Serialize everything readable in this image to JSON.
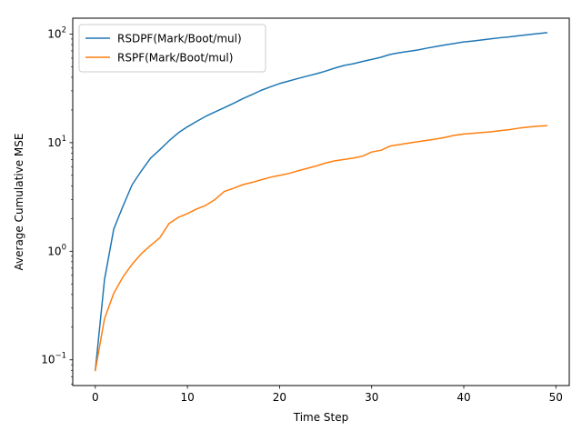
{
  "chart_data": {
    "type": "line",
    "title": "",
    "xlabel": "Time Step",
    "ylabel": "Average Cumulative MSE",
    "xlim": [
      -2.45,
      51.45
    ],
    "ylim": [
      0.058,
      140
    ],
    "yscale": "log",
    "x_ticks": [
      0,
      10,
      20,
      30,
      40,
      50
    ],
    "x_tick_labels": [
      "0",
      "10",
      "20",
      "30",
      "40",
      "50"
    ],
    "y_ticks": [
      0.1,
      1,
      10,
      100
    ],
    "y_tick_labels": [
      {
        "base": "10",
        "exp": "−1"
      },
      {
        "base": "10",
        "exp": "0"
      },
      {
        "base": "10",
        "exp": "1"
      },
      {
        "base": "10",
        "exp": "2"
      }
    ],
    "grid": false,
    "legend_position": "upper-left",
    "x": [
      0,
      1,
      2,
      3,
      4,
      5,
      6,
      7,
      8,
      9,
      10,
      11,
      12,
      13,
      14,
      15,
      16,
      17,
      18,
      19,
      20,
      21,
      22,
      23,
      24,
      25,
      26,
      27,
      28,
      29,
      30,
      31,
      32,
      33,
      34,
      35,
      36,
      37,
      38,
      39,
      40,
      41,
      42,
      43,
      44,
      45,
      46,
      47,
      48,
      49
    ],
    "series": [
      {
        "name": "RSDPF(Mark/Boot/mul)",
        "color": "#1f77b4",
        "values": [
          0.08,
          0.55,
          1.6,
          2.6,
          4.1,
          5.5,
          7.2,
          8.6,
          10.4,
          12.3,
          14.0,
          15.7,
          17.5,
          19.2,
          21.0,
          23.0,
          25.4,
          27.7,
          30.3,
          32.6,
          35.0,
          36.9,
          39.0,
          41.0,
          43.1,
          45.6,
          48.6,
          51.4,
          53.3,
          55.9,
          58.4,
          61.1,
          64.9,
          67.3,
          69.3,
          71.3,
          74.2,
          76.8,
          79.5,
          82.0,
          84.6,
          86.3,
          88.3,
          90.5,
          92.6,
          94.3,
          96.6,
          98.7,
          100.8,
          103.0
        ]
      },
      {
        "name": "RSPF(Mark/Boot/mul)",
        "color": "#ff7f0e",
        "values": [
          0.08,
          0.24,
          0.41,
          0.58,
          0.76,
          0.95,
          1.13,
          1.33,
          1.8,
          2.05,
          2.22,
          2.45,
          2.65,
          3.0,
          3.55,
          3.8,
          4.1,
          4.3,
          4.55,
          4.8,
          5.0,
          5.2,
          5.5,
          5.8,
          6.1,
          6.5,
          6.8,
          7.0,
          7.2,
          7.5,
          8.2,
          8.5,
          9.3,
          9.6,
          9.9,
          10.2,
          10.5,
          10.8,
          11.2,
          11.7,
          12.0,
          12.2,
          12.4,
          12.6,
          12.9,
          13.2,
          13.6,
          13.9,
          14.2,
          14.3
        ]
      }
    ]
  }
}
